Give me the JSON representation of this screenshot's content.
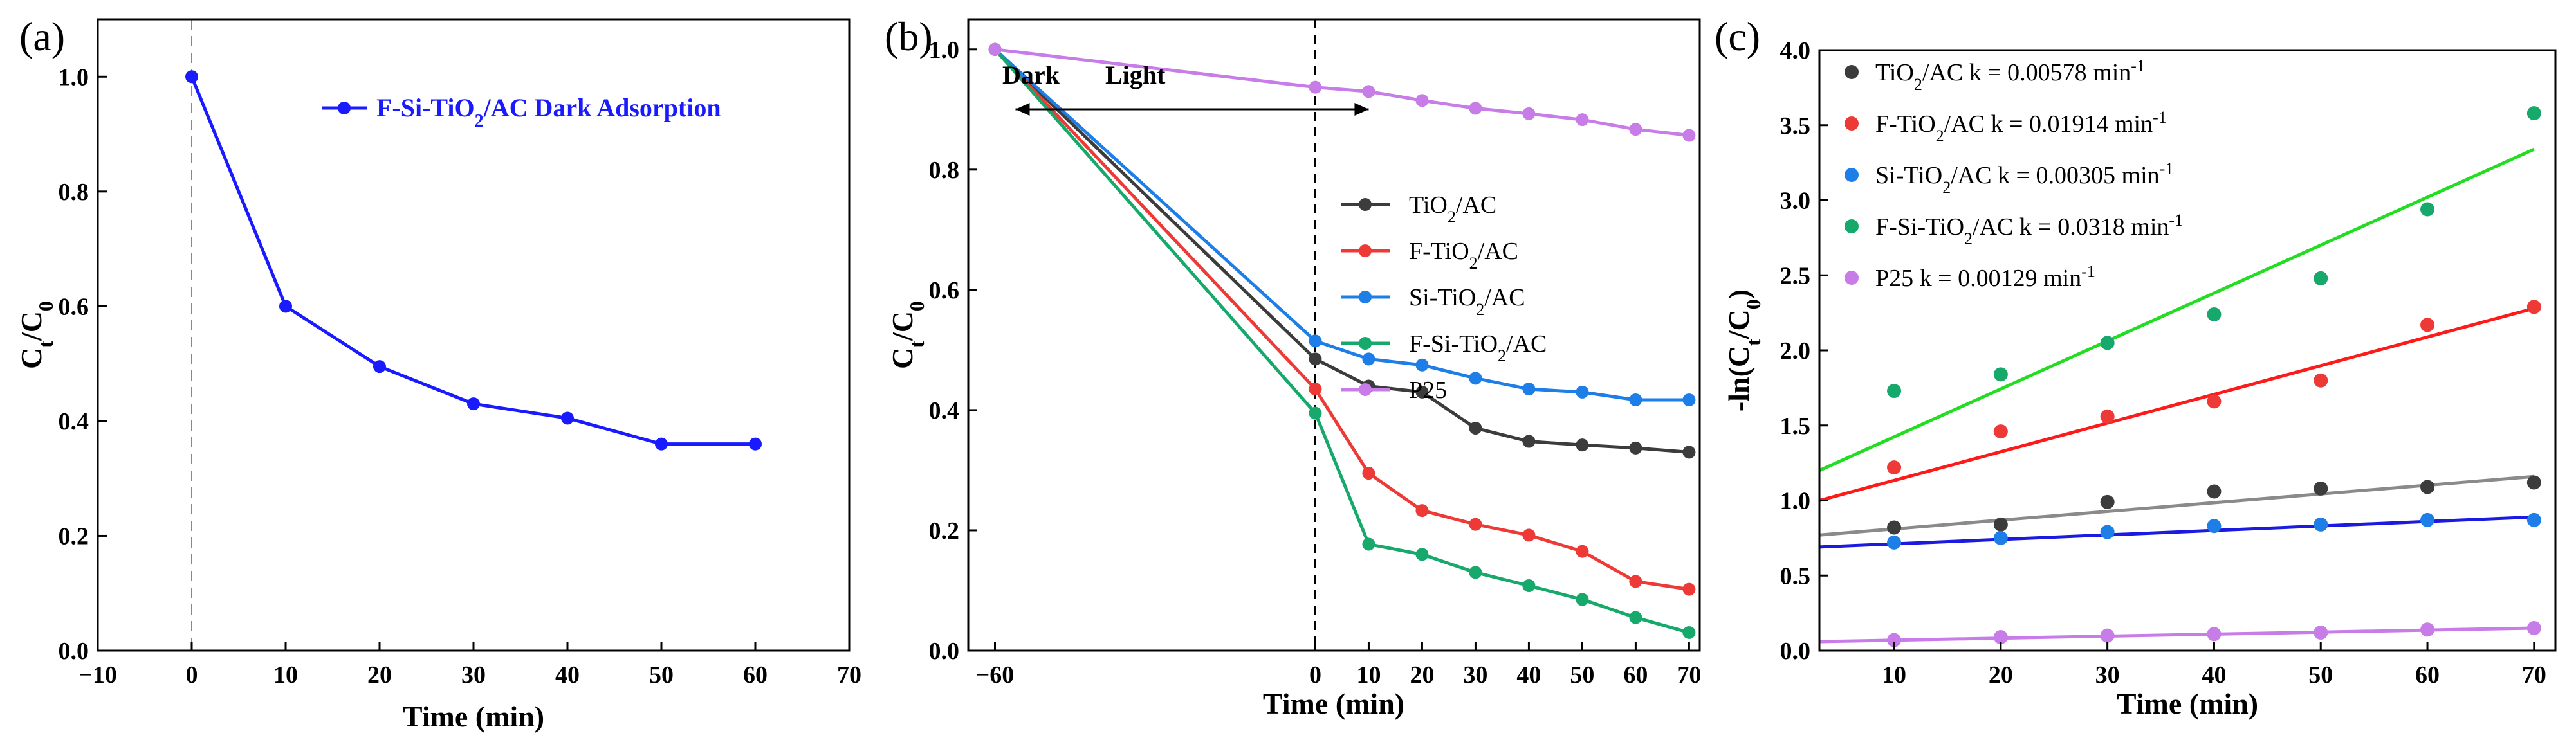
{
  "chart_data": [
    {
      "panel": "(a)",
      "type": "line",
      "xlabel": "Time (min)",
      "ylabel": {
        "main": "C",
        "sub": "t",
        "sep": "/C",
        "sub2": "0"
      },
      "xlim": [
        -10,
        70
      ],
      "ylim": [
        0,
        1.1
      ],
      "xticks": [
        -10,
        0,
        10,
        20,
        30,
        40,
        50,
        60,
        70
      ],
      "xtick_labels": [
        "−10",
        "0",
        "10",
        "20",
        "30",
        "40",
        "50",
        "60",
        "70"
      ],
      "yticks": [
        0,
        0.2,
        0.4,
        0.6,
        0.8,
        1.0
      ],
      "ytick_labels": [
        "0.0",
        "0.2",
        "0.4",
        "0.6",
        "0.8",
        "1.0"
      ],
      "reference_line_x": 0,
      "series": [
        {
          "name": "F-Si-TiO2/AC Dark Adsorption",
          "legend": {
            "pre": "F-Si-TiO",
            "sub": "2",
            "post": "/AC Dark Adsorption"
          },
          "color": "#1a1aff",
          "x": [
            0,
            10,
            20,
            30,
            40,
            50,
            60
          ],
          "y": [
            1.0,
            0.6,
            0.495,
            0.43,
            0.405,
            0.36,
            0.36
          ]
        }
      ]
    },
    {
      "panel": "(b)",
      "type": "line",
      "xlabel": "Time (min)",
      "ylabel": {
        "main": "C",
        "sub": "t",
        "sep": "/C",
        "sub2": "0"
      },
      "xlim": [
        -65,
        72
      ],
      "ylim": [
        0,
        1.05
      ],
      "xticks": [
        -60,
        0,
        10,
        20,
        30,
        40,
        50,
        60,
        70
      ],
      "xtick_labels": [
        "−60",
        "0",
        "10",
        "20",
        "30",
        "40",
        "50",
        "60",
        "70"
      ],
      "yticks": [
        0,
        0.2,
        0.4,
        0.6,
        0.8,
        1.0
      ],
      "ytick_labels": [
        "0.0",
        "0.2",
        "0.4",
        "0.6",
        "0.8",
        "1.0"
      ],
      "reference_line_x": 0,
      "annotations": {
        "dark": "Dark",
        "light": "Light",
        "arrow_from": -60,
        "arrow_to": 10,
        "arrow_y": 1.0
      },
      "series": [
        {
          "name": "TiO2/AC",
          "legend": {
            "pre": "TiO",
            "sub": "2",
            "post": "/AC"
          },
          "color": "#3c3c3c",
          "x": [
            -60,
            0,
            10,
            20,
            30,
            40,
            50,
            60,
            70
          ],
          "y": [
            1.0,
            0.485,
            0.44,
            0.43,
            0.37,
            0.348,
            0.342,
            0.337,
            0.33
          ]
        },
        {
          "name": "F-TiO2/AC",
          "legend": {
            "pre": "F-TiO",
            "sub": "2",
            "post": "/AC"
          },
          "color": "#ee3a36",
          "x": [
            -60,
            0,
            10,
            20,
            30,
            40,
            50,
            60,
            70
          ],
          "y": [
            1.0,
            0.435,
            0.295,
            0.233,
            0.21,
            0.192,
            0.165,
            0.115,
            0.102
          ]
        },
        {
          "name": "Si-TiO2/AC",
          "legend": {
            "pre": "Si-TiO",
            "sub": "2",
            "post": "/AC"
          },
          "color": "#1e7ee8",
          "x": [
            -60,
            0,
            10,
            20,
            30,
            40,
            50,
            60,
            70
          ],
          "y": [
            1.0,
            0.515,
            0.485,
            0.475,
            0.453,
            0.435,
            0.43,
            0.417,
            0.417
          ]
        },
        {
          "name": "F-Si-TiO2/AC",
          "legend": {
            "pre": "F-Si-TiO",
            "sub": "2",
            "post": "/AC"
          },
          "color": "#17a86b",
          "x": [
            -60,
            0,
            10,
            20,
            30,
            40,
            50,
            60,
            70
          ],
          "y": [
            1.0,
            0.395,
            0.177,
            0.16,
            0.13,
            0.108,
            0.085,
            0.055,
            0.03
          ]
        },
        {
          "name": "P25",
          "legend": {
            "pre": "P25",
            "sub": "",
            "post": ""
          },
          "color": "#c87ce8",
          "x": [
            -60,
            0,
            10,
            20,
            30,
            40,
            50,
            60,
            70
          ],
          "y": [
            1.0,
            0.937,
            0.93,
            0.915,
            0.902,
            0.893,
            0.883,
            0.867,
            0.857
          ]
        }
      ]
    },
    {
      "panel": "(c)",
      "type": "scatter",
      "xlabel": "Time (min)",
      "ylabel": {
        "main": "-ln(C",
        "sub": "t",
        "sep": "/C",
        "sub2": "0",
        "tail": ")"
      },
      "xlim": [
        3,
        72
      ],
      "ylim": [
        0,
        4.0
      ],
      "xticks": [
        10,
        20,
        30,
        40,
        50,
        60,
        70
      ],
      "xtick_labels": [
        "10",
        "20",
        "30",
        "40",
        "50",
        "60",
        "70"
      ],
      "yticks": [
        0,
        0.5,
        1.0,
        1.5,
        2.0,
        2.5,
        3.0,
        3.5,
        4.0
      ],
      "ytick_labels": [
        "0.0",
        "0.5",
        "1.0",
        "1.5",
        "2.0",
        "2.5",
        "3.0",
        "3.5",
        "4.0"
      ],
      "series": [
        {
          "name": "TiO2/AC",
          "legend": {
            "pre": "TiO",
            "sub": "2",
            "post": "/AC k = 0.00578 min",
            "sup": "-1"
          },
          "color": "#3c3c3c",
          "fit_color": "#8a8a8a",
          "x": [
            10,
            20,
            30,
            40,
            50,
            60,
            70
          ],
          "y": [
            0.82,
            0.84,
            0.99,
            1.06,
            1.08,
            1.09,
            1.12
          ],
          "fit": {
            "x": [
              3,
              70
            ],
            "y": [
              0.77,
              1.16
            ]
          }
        },
        {
          "name": "F-TiO2/AC",
          "legend": {
            "pre": "F-TiO",
            "sub": "2",
            "post": "/AC k = 0.01914 min",
            "sup": "-1"
          },
          "color": "#ee3a36",
          "fit_color": "#ff1a1a",
          "x": [
            10,
            20,
            30,
            40,
            50,
            60,
            70
          ],
          "y": [
            1.22,
            1.46,
            1.56,
            1.66,
            1.8,
            2.17,
            2.29
          ],
          "fit": {
            "x": [
              3,
              70
            ],
            "y": [
              1.0,
              2.28
            ]
          }
        },
        {
          "name": "Si-TiO2/AC",
          "legend": {
            "pre": "Si-TiO",
            "sub": "2",
            "post": "/AC k = 0.00305 min",
            "sup": "-1"
          },
          "color": "#1e7ee8",
          "fit_color": "#1a1ae0",
          "x": [
            10,
            20,
            30,
            40,
            50,
            60,
            70
          ],
          "y": [
            0.72,
            0.75,
            0.79,
            0.83,
            0.84,
            0.87,
            0.87
          ],
          "fit": {
            "x": [
              3,
              70
            ],
            "y": [
              0.69,
              0.89
            ]
          }
        },
        {
          "name": "F-Si-TiO2/AC",
          "legend": {
            "pre": "F-Si-TiO",
            "sub": "2",
            "post": "/AC k = 0.0318 min",
            "sup": "-1"
          },
          "color": "#17a86b",
          "fit_color": "#22dd22",
          "x": [
            10,
            20,
            30,
            40,
            50,
            60,
            70
          ],
          "y": [
            1.73,
            1.84,
            2.05,
            2.24,
            2.48,
            2.94,
            3.58
          ],
          "fit": {
            "x": [
              3,
              70
            ],
            "y": [
              1.2,
              3.34
            ]
          }
        },
        {
          "name": "P25",
          "legend": {
            "pre": "P25 k = 0.00129 min",
            "sub": "",
            "post": "",
            "sup": "-1"
          },
          "color": "#c87ce8",
          "fit_color": "#c87ce8",
          "x": [
            10,
            20,
            30,
            40,
            50,
            60,
            70
          ],
          "y": [
            0.07,
            0.09,
            0.1,
            0.11,
            0.12,
            0.14,
            0.15
          ],
          "fit": {
            "x": [
              3,
              70
            ],
            "y": [
              0.06,
              0.15
            ]
          }
        }
      ]
    }
  ]
}
